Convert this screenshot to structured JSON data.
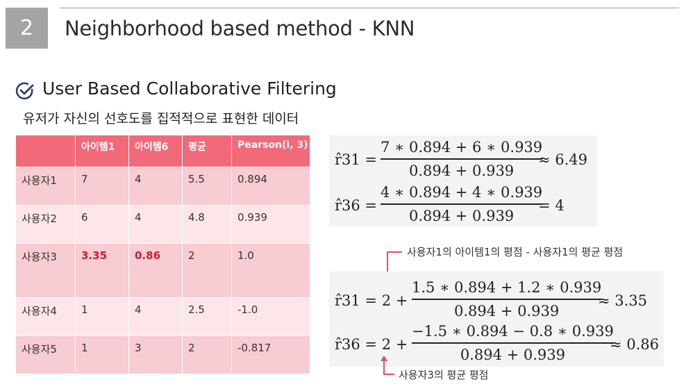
{
  "header": {
    "section_number": "2",
    "title": "Neighborhood based method  -  KNN"
  },
  "section": {
    "title": "User Based Collaborative Filtering",
    "subtitle": "유저가 자신의 선호도를 집적적으로 표현한 데이터"
  },
  "table": {
    "headers": [
      "",
      "아이템1",
      "아이템6",
      "평균",
      "Pearson(i, 3)"
    ],
    "rows": [
      [
        "사용자1",
        "7",
        "4",
        "5.5",
        "0.894"
      ],
      [
        "사용자2",
        "6",
        "4",
        "4.8",
        "0.939"
      ],
      [
        "사용자3",
        "3.35",
        "0.86",
        "2",
        "1.0"
      ],
      [
        "사용자4",
        "1",
        "4",
        "2.5",
        "-1.0"
      ],
      [
        "사용자5",
        "1",
        "3",
        "2",
        "-0.817"
      ]
    ],
    "highlight_color": "#c81e2e",
    "header_color": "#f26a7a"
  },
  "formulas_top": {
    "r31": {
      "lhs": "r̂31 =",
      "num": "7 ∗ 0.894 + 6 ∗ 0.939",
      "den": "0.894 + 0.939",
      "rhs": "≈ 6.49"
    },
    "r36": {
      "lhs": "r̂36 =",
      "num": "4 ∗ 0.894 + 4 ∗ 0.939",
      "den": "0.894 + 0.939",
      "rhs": "= 4"
    }
  },
  "formulas_bottom": {
    "r31": {
      "lhs": "r̂31 = 2 +",
      "num": "1.5 ∗ 0.894 + 1.2 ∗ 0.939",
      "den": "0.894 + 0.939",
      "rhs": "≈ 3.35"
    },
    "r36": {
      "lhs": "r̂36 = 2 +",
      "num": "−1.5 ∗ 0.894 − 0.8 ∗ 0.939",
      "den": "0.894 + 0.939",
      "rhs": "≈ 0.86"
    }
  },
  "annotations": {
    "top": "사용자1의 아이템1의 평점  -  사용자1의 평균 평점",
    "bottom": "사용자3의 평균 평점"
  }
}
